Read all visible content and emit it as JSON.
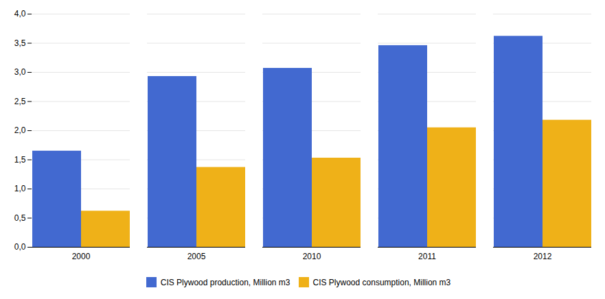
{
  "chart_data": {
    "type": "bar",
    "categories": [
      "2000",
      "2005",
      "2010",
      "2011",
      "2012"
    ],
    "series": [
      {
        "name": "CIS Plywood production, Million m3",
        "values": [
          1.65,
          2.93,
          3.07,
          3.46,
          3.62
        ]
      },
      {
        "name": "CIS Plywood consumption, Million m3",
        "values": [
          0.62,
          1.37,
          1.53,
          2.05,
          2.18
        ]
      }
    ],
    "ylim": [
      0,
      4.0
    ],
    "yticks": [
      {
        "value": 0.0,
        "label": "0,0"
      },
      {
        "value": 0.5,
        "label": "0,5"
      },
      {
        "value": 1.0,
        "label": "1,0"
      },
      {
        "value": 1.5,
        "label": "1,5"
      },
      {
        "value": 2.0,
        "label": "2,0"
      },
      {
        "value": 2.5,
        "label": "2,5"
      },
      {
        "value": 3.0,
        "label": "3,0"
      },
      {
        "value": 3.5,
        "label": "3,5"
      },
      {
        "value": 4.0,
        "label": "4,0"
      }
    ],
    "grid": true,
    "legend": "bottom"
  }
}
